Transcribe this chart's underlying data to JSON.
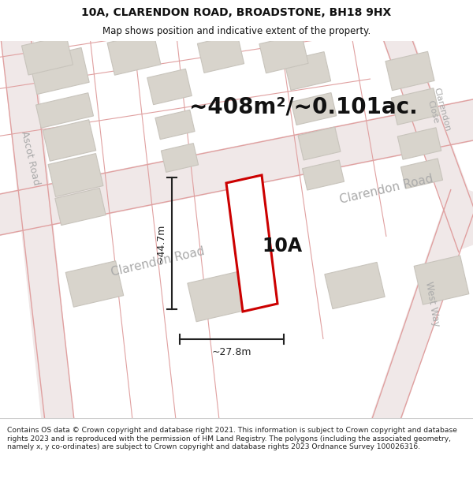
{
  "title_line1": "10A, CLARENDON ROAD, BROADSTONE, BH18 9HX",
  "title_line2": "Map shows position and indicative extent of the property.",
  "area_text": "~408m²/~0.101ac.",
  "label_10A": "10A",
  "dim_height": "~44.7m",
  "dim_width": "~27.8m",
  "footer_text": "Contains OS data © Crown copyright and database right 2021. This information is subject to Crown copyright and database rights 2023 and is reproduced with the permission of HM Land Registry. The polygons (including the associated geometry, namely x, y co-ordinates) are subject to Crown copyright and database rights 2023 Ordnance Survey 100026316.",
  "map_bg": "#f7f6f4",
  "road_fill_color": "#f0e8e8",
  "road_line_color": "#e0a0a0",
  "building_fill": "#d8d4cc",
  "building_edge": "#c8c4bc",
  "plot_color": "#cc0000",
  "road_label_color": "#aaaaaa",
  "dim_line_color": "#222222",
  "text_color": "#111111",
  "title_bg": "#ffffff",
  "footer_bg": "#ffffff",
  "footer_sep_color": "#cccccc"
}
